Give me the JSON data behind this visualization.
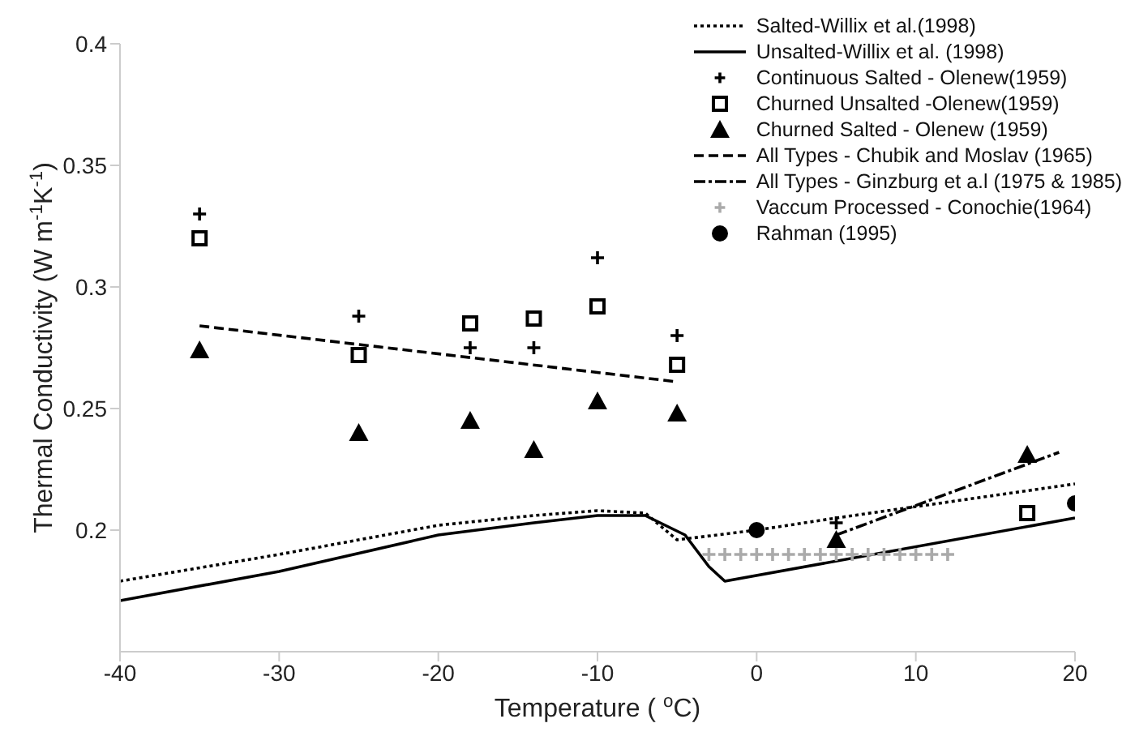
{
  "chart_data": {
    "type": "line",
    "xlabel": "Temperature ( $^{o}$C)",
    "ylabel": "Thermal Conductivity (W m$^{-1}$K$^{-1}$)",
    "xlim": [
      -40,
      20
    ],
    "xticks": [
      -40,
      -30,
      -20,
      -10,
      0,
      10,
      20
    ],
    "ylim": [
      0.15,
      0.4
    ],
    "yticks": [
      0.2,
      0.25,
      0.3,
      0.35,
      0.4
    ],
    "grid": false,
    "legend": "top right",
    "series": [
      {
        "name": "Salted-Willix et al.(1998)",
        "line_style": "dotted",
        "marker": "none",
        "color": "#000000",
        "x": [
          -40,
          -30,
          -20,
          -14,
          -10,
          -7,
          -5,
          0,
          5,
          20
        ],
        "values": [
          0.179,
          0.19,
          0.202,
          0.206,
          0.208,
          0.207,
          0.196,
          0.2,
          0.205,
          0.219
        ]
      },
      {
        "name": "Unsalted-Willix et al. (1998)",
        "line_style": "solid",
        "marker": "none",
        "color": "#000000",
        "x": [
          -40,
          -30,
          -20,
          -14,
          -10,
          -7,
          -4.5,
          -3,
          -2,
          20
        ],
        "values": [
          0.171,
          0.183,
          0.198,
          0.203,
          0.206,
          0.206,
          0.198,
          0.185,
          0.179,
          0.205
        ]
      },
      {
        "name": "Continuous Salted - Olenew(1959)",
        "type": "scatter",
        "marker": "cross",
        "color": "#000000",
        "x": [
          -35,
          -25,
          -18,
          -14,
          -10,
          -5,
          5
        ],
        "values": [
          0.33,
          0.288,
          0.275,
          0.275,
          0.312,
          0.28,
          0.203
        ]
      },
      {
        "name": "Churned Unsalted -Olenew(1959)",
        "type": "scatter",
        "marker": "square",
        "color": "#000000",
        "x": [
          -35,
          -25,
          -18,
          -14,
          -10,
          -5,
          17
        ],
        "values": [
          0.32,
          0.272,
          0.285,
          0.287,
          0.292,
          0.268,
          0.207
        ]
      },
      {
        "name": "Churned Salted - Olenew (1959)",
        "type": "scatter",
        "marker": "triangle",
        "color": "#000000",
        "x": [
          -35,
          -25,
          -18,
          -14,
          -10,
          -5,
          5,
          17
        ],
        "values": [
          0.274,
          0.24,
          0.245,
          0.233,
          0.253,
          0.248,
          0.196,
          0.231
        ]
      },
      {
        "name": "All Types - Chubik and Moslav (1965)",
        "line_style": "dashed",
        "marker": "none",
        "color": "#000000",
        "x": [
          -35,
          -5
        ],
        "values": [
          0.284,
          0.261
        ]
      },
      {
        "name": "All Types - Ginzburg et a.l (1975 & 1985)",
        "line_style": "dashdot",
        "marker": "none",
        "color": "#000000",
        "x": [
          5,
          19
        ],
        "values": [
          0.198,
          0.232
        ]
      },
      {
        "name": "Vaccum Processed - Conochie(1964)",
        "type": "scatter",
        "marker": "cross",
        "color": "#aaaaaa",
        "x": [
          -3,
          -2,
          -1,
          0,
          1,
          2,
          3,
          4,
          5,
          6,
          7,
          8,
          9,
          10,
          11,
          12
        ],
        "values": [
          0.19,
          0.19,
          0.19,
          0.19,
          0.19,
          0.19,
          0.19,
          0.19,
          0.19,
          0.19,
          0.19,
          0.19,
          0.19,
          0.19,
          0.19,
          0.19
        ]
      },
      {
        "name": "Rahman (1995)",
        "type": "scatter",
        "marker": "circle",
        "color": "#000000",
        "x": [
          0,
          20
        ],
        "values": [
          0.2,
          0.211
        ]
      }
    ]
  }
}
